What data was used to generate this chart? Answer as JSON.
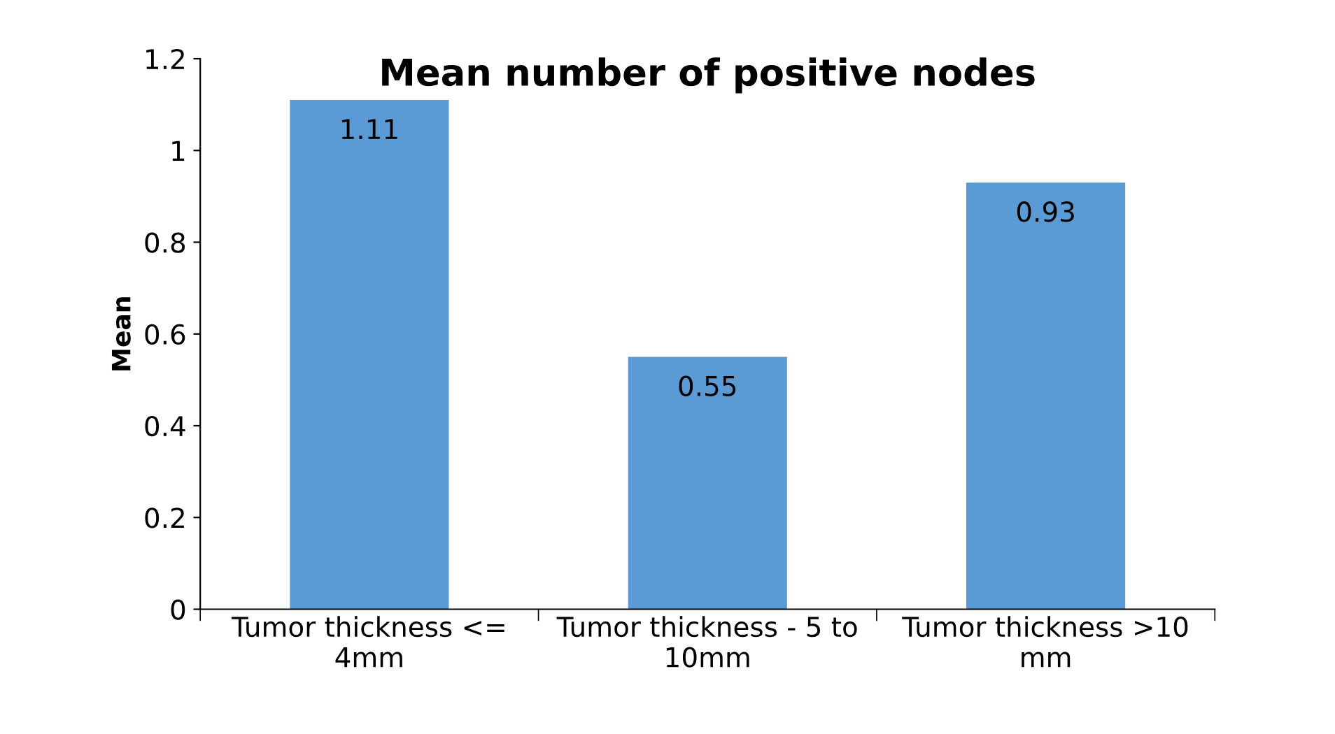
{
  "chart_data": {
    "type": "bar",
    "title": "Mean number of positive nodes",
    "ylabel": "Mean",
    "categories": [
      "Tumor thickness <=\n4mm",
      "Tumor thickness - 5 to\n10mm",
      "Tumor thickness >10\nmm"
    ],
    "values": [
      1.11,
      0.55,
      0.93
    ],
    "color": "#5b9bd5",
    "ylim": [
      0,
      1.2
    ],
    "yticks": [
      0,
      0.2,
      0.4,
      0.6,
      0.8,
      1,
      1.2
    ],
    "grid": false,
    "legend": false,
    "data_labels": true
  }
}
